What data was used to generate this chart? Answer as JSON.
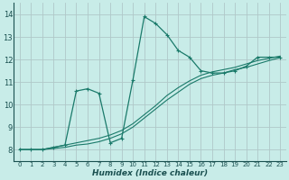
{
  "title": "",
  "xlabel": "Humidex (Indice chaleur)",
  "background_color": "#c8ece8",
  "grid_color": "#b0c8c8",
  "line_color": "#1a7a6a",
  "xlim": [
    -0.5,
    23.5
  ],
  "ylim": [
    7.5,
    14.5
  ],
  "xticks": [
    0,
    1,
    2,
    3,
    4,
    5,
    6,
    7,
    8,
    9,
    10,
    11,
    12,
    13,
    14,
    15,
    16,
    17,
    18,
    19,
    20,
    21,
    22,
    23
  ],
  "yticks": [
    8,
    9,
    10,
    11,
    12,
    13,
    14
  ],
  "series1": [
    8.0,
    8.0,
    8.0,
    8.1,
    8.2,
    10.6,
    10.7,
    10.5,
    8.3,
    8.5,
    11.1,
    13.9,
    13.6,
    13.1,
    12.4,
    12.1,
    11.5,
    11.4,
    11.4,
    11.5,
    11.7,
    12.1,
    12.1,
    12.1
  ],
  "series2": [
    8.0,
    8.0,
    8.0,
    8.1,
    8.2,
    8.3,
    8.4,
    8.5,
    8.65,
    8.85,
    9.15,
    9.55,
    9.95,
    10.4,
    10.75,
    11.05,
    11.3,
    11.45,
    11.55,
    11.65,
    11.8,
    11.95,
    12.05,
    12.15
  ],
  "series3": [
    8.0,
    8.0,
    8.0,
    8.05,
    8.1,
    8.2,
    8.25,
    8.35,
    8.5,
    8.7,
    9.0,
    9.4,
    9.8,
    10.2,
    10.55,
    10.9,
    11.15,
    11.3,
    11.4,
    11.55,
    11.65,
    11.8,
    11.95,
    12.08
  ]
}
